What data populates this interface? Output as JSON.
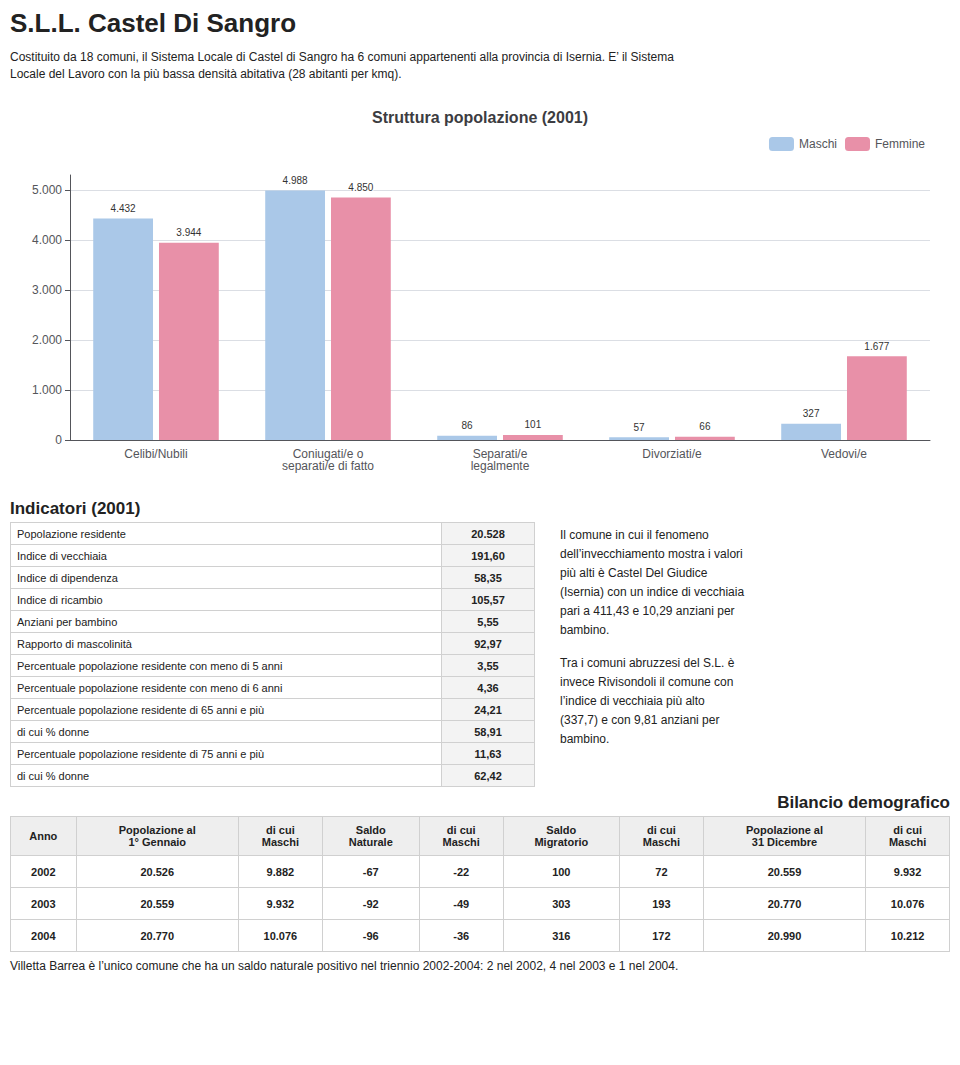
{
  "title": "S.L.L. Castel Di Sangro",
  "subtitle": [
    "Costituito da 18 comuni, il Sistema Locale di Castel di Sangro ha 6 comuni appartenenti alla provincia  di Isernia. E’ il Sistema",
    "Locale del Lavoro con la più bassa densità abitativa (28 abitanti per kmq)."
  ],
  "chart_data": [
    {
      "type": "bar",
      "title": "Struttura popolazione (2001)",
      "categories": [
        "Celibi/Nubili",
        "Coniugati/e o\nseparati/e di fatto",
        "Separati/e\nlegalmente",
        "Divorziati/e",
        "Vedovi/e"
      ],
      "series": [
        {
          "name": "Maschi",
          "color": "#aac8e8",
          "values": [
            4432,
            4988,
            86,
            57,
            327
          ],
          "value_labels": [
            "4.432",
            "4.988",
            "86",
            "57",
            "327"
          ]
        },
        {
          "name": "Femmine",
          "color": "#e890a8",
          "values": [
            3944,
            4850,
            101,
            66,
            1677
          ],
          "value_labels": [
            "3.944",
            "4.850",
            "101",
            "66",
            "1.677"
          ]
        }
      ],
      "ylim": [
        0,
        5300
      ],
      "yticks": [
        0,
        {
          "value": 1000,
          "label": "1.000"
        },
        {
          "value": 2000,
          "label": "2.000"
        },
        {
          "value": 3000,
          "label": "3.000"
        },
        {
          "value": 4000,
          "label": "4.000"
        },
        {
          "value": 5000,
          "label": "5.000"
        }
      ],
      "grid": true,
      "legend": "upper right",
      "data_labels": true
    },
    {
      "type": "table",
      "title": "Indicatori (2001)",
      "categories": [
        "Popolazione residente",
        "Indice di vecchiaia",
        "Indice di dipendenza",
        "Indice di ricambio",
        "Anziani per bambino",
        "Rapporto di mascolinità",
        "Percentuale popolazione residente con meno di 5 anni",
        "Percentuale popolazione residente con meno di 6 anni",
        "Percentuale popolazione residente di 65 anni e più",
        "di cui % donne",
        "Percentuale popolazione residente di 75 anni e più",
        "di cui % donne"
      ],
      "values": [
        20528,
        191.6,
        58.35,
        105.57,
        5.55,
        92.97,
        3.55,
        4.36,
        24.21,
        58.91,
        11.63,
        62.42
      ],
      "value_labels": [
        "20.528",
        "191,60",
        "58,35",
        "105,57",
        "5,55",
        "92,97",
        "3,55",
        "4,36",
        "24,21",
        "58,91",
        "11,63",
        "62,42"
      ],
      "annotations": [
        "Il comune in cui il fenomeno\ndell’invecchiamento mostra i valori\npiù alti è Castel Del Giudice\n(Isernia) con un indice di vecchiaia\npari a 411,43 e 10,29  anziani per\nbambino.",
        "Tra i comuni abruzzesi del S.L. è\ninvece Rivisondoli il comune con\nl’indice di vecchiaia più alto\n(337,7) e con 9,81 anziani per\nbambino."
      ]
    },
    {
      "type": "table",
      "title": "Bilancio demografico",
      "xlabel": "Anno",
      "categories": [
        "2002",
        "2003",
        "2004"
      ],
      "series": [
        {
          "name": "Popolazione al\n1° Gennaio",
          "values": [
            20526,
            20559,
            20770
          ],
          "value_labels": [
            "20.526",
            "20.559",
            "20.770"
          ]
        },
        {
          "name": "di cui\nMaschi",
          "values": [
            9882,
            9932,
            10076
          ],
          "value_labels": [
            "9.882",
            "9.932",
            "10.076"
          ]
        },
        {
          "name": "Saldo\nNaturale",
          "values": [
            -67,
            -92,
            -96
          ]
        },
        {
          "name": "di cui\nMaschi",
          "values": [
            -22,
            -49,
            -36
          ]
        },
        {
          "name": "Saldo\nMigratorio",
          "values": [
            100,
            303,
            316
          ]
        },
        {
          "name": "di cui\nMaschi",
          "values": [
            72,
            193,
            172
          ]
        },
        {
          "name": "Popolazione al\n31 Dicembre",
          "values": [
            20559,
            20770,
            20990
          ],
          "value_labels": [
            "20.559",
            "20.770",
            "20.990"
          ]
        },
        {
          "name": "di cui\nMaschi",
          "values": [
            9932,
            10076,
            10212
          ],
          "value_labels": [
            "9.932",
            "10.076",
            "10.212"
          ]
        }
      ],
      "annotations": [
        "Villetta Barrea è l’unico comune che ha un saldo naturale positivo nel triennio 2002-2004: 2 nel 2002, 4 nel 2003 e 1 nel 2004."
      ]
    }
  ]
}
